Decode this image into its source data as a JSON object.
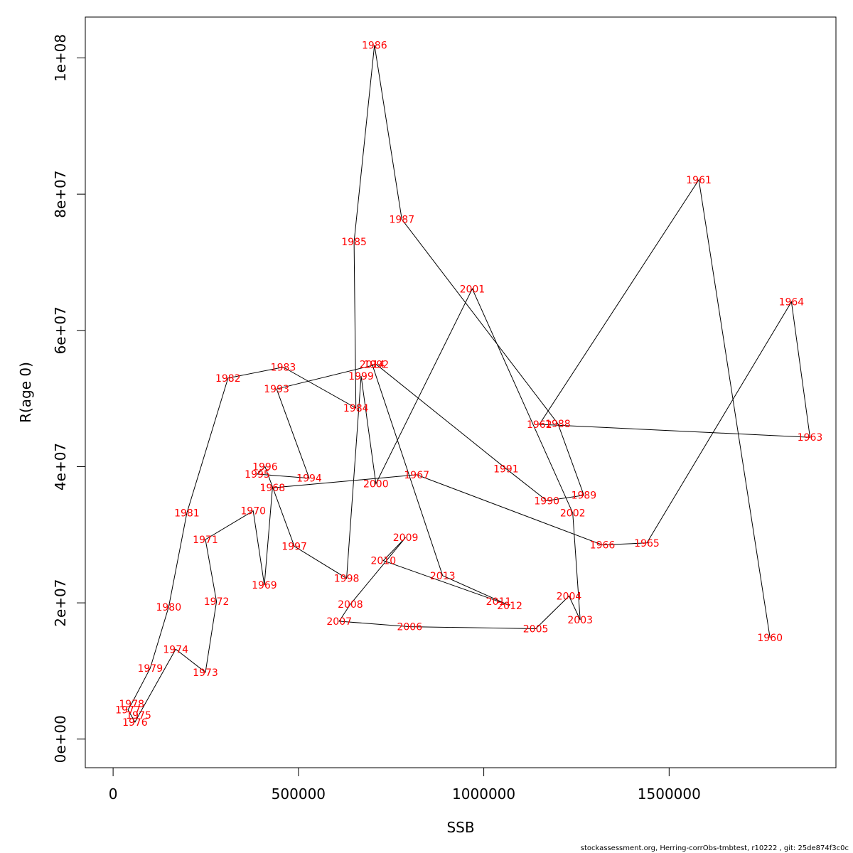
{
  "chart_data": {
    "type": "line",
    "title": "",
    "xlabel": "SSB",
    "ylabel": "R(age 0)",
    "xlim": [
      -75000,
      1950000
    ],
    "ylim": [
      -4200000,
      106000000
    ],
    "x_ticks": [
      0,
      500000,
      1000000,
      1500000
    ],
    "x_tick_labels": [
      "0",
      "500000",
      "1000000",
      "1500000"
    ],
    "y_ticks": [
      0,
      20000000,
      40000000,
      60000000,
      80000000,
      100000000
    ],
    "y_tick_labels": [
      "0e+00",
      "2e+07",
      "4e+07",
      "6e+07",
      "8e+07",
      "1e+08"
    ],
    "grid": false,
    "legend": "none",
    "line_color": "#000000",
    "label_color": "#ff0000",
    "series": [
      {
        "points": [
          {
            "year": "1960",
            "x": 1772000,
            "y": 14900000
          },
          {
            "year": "1961",
            "x": 1580000,
            "y": 82100000
          },
          {
            "year": "1962",
            "x": 1150000,
            "y": 46200000
          },
          {
            "year": "1963",
            "x": 1880000,
            "y": 44300000
          },
          {
            "year": "1964",
            "x": 1830000,
            "y": 64200000
          },
          {
            "year": "1965",
            "x": 1440000,
            "y": 28800000
          },
          {
            "year": "1966",
            "x": 1320000,
            "y": 28500000
          },
          {
            "year": "1967",
            "x": 819000,
            "y": 38800000
          },
          {
            "year": "1968",
            "x": 430000,
            "y": 36900000
          },
          {
            "year": "1969",
            "x": 408000,
            "y": 22600000
          },
          {
            "year": "1970",
            "x": 378000,
            "y": 33500000
          },
          {
            "year": "1971",
            "x": 249000,
            "y": 29300000
          },
          {
            "year": "1972",
            "x": 279000,
            "y": 20200000
          },
          {
            "year": "1973",
            "x": 249000,
            "y": 9800000
          },
          {
            "year": "1974",
            "x": 169000,
            "y": 13200000
          },
          {
            "year": "1975",
            "x": 69000,
            "y": 3500000
          },
          {
            "year": "1976",
            "x": 59000,
            "y": 2500000
          },
          {
            "year": "1977",
            "x": 40000,
            "y": 4300000
          },
          {
            "year": "1978",
            "x": 50000,
            "y": 5200000
          },
          {
            "year": "1979",
            "x": 100000,
            "y": 10400000
          },
          {
            "year": "1980",
            "x": 150000,
            "y": 19400000
          },
          {
            "year": "1981",
            "x": 199000,
            "y": 33200000
          },
          {
            "year": "1982",
            "x": 310000,
            "y": 53000000
          },
          {
            "year": "1983",
            "x": 459000,
            "y": 54600000
          },
          {
            "year": "1984",
            "x": 655000,
            "y": 48600000
          },
          {
            "year": "1985",
            "x": 650000,
            "y": 73000000
          },
          {
            "year": "1986",
            "x": 705000,
            "y": 101900000
          },
          {
            "year": "1987",
            "x": 779000,
            "y": 76300000
          },
          {
            "year": "1988",
            "x": 1200000,
            "y": 46300000
          },
          {
            "year": "1989",
            "x": 1270000,
            "y": 35800000
          },
          {
            "year": "1990",
            "x": 1170000,
            "y": 35000000
          },
          {
            "year": "1991",
            "x": 1060000,
            "y": 39700000
          },
          {
            "year": "1992",
            "x": 710000,
            "y": 55000000
          },
          {
            "year": "1993",
            "x": 441000,
            "y": 51400000
          },
          {
            "year": "1994",
            "x": 529000,
            "y": 38300000
          },
          {
            "year": "1995",
            "x": 389000,
            "y": 38900000
          },
          {
            "year": "1996",
            "x": 410000,
            "y": 40000000
          },
          {
            "year": "1997",
            "x": 489000,
            "y": 28300000
          },
          {
            "year": "1998",
            "x": 630000,
            "y": 23600000
          },
          {
            "year": "1999",
            "x": 669000,
            "y": 53300000
          },
          {
            "year": "2000",
            "x": 709000,
            "y": 37500000
          },
          {
            "year": "2001",
            "x": 969000,
            "y": 66100000
          },
          {
            "year": "2002",
            "x": 1240000,
            "y": 33200000
          },
          {
            "year": "2003",
            "x": 1260000,
            "y": 17500000
          },
          {
            "year": "2004",
            "x": 1230000,
            "y": 21000000
          },
          {
            "year": "2005",
            "x": 1140000,
            "y": 16200000
          },
          {
            "year": "2006",
            "x": 800000,
            "y": 16500000
          },
          {
            "year": "2007",
            "x": 610000,
            "y": 17300000
          },
          {
            "year": "2008",
            "x": 640000,
            "y": 19800000
          },
          {
            "year": "2009",
            "x": 789000,
            "y": 29600000
          },
          {
            "year": "2010",
            "x": 729000,
            "y": 26200000
          },
          {
            "year": "2011",
            "x": 1040000,
            "y": 20200000
          },
          {
            "year": "2012",
            "x": 1070000,
            "y": 19600000
          },
          {
            "year": "2013",
            "x": 889000,
            "y": 24000000
          },
          {
            "year": "2014",
            "x": 699000,
            "y": 55000000
          }
        ]
      }
    ]
  },
  "footer": "stockassessment.org, Herring-corrObs-tmbtest, r10222 , git: 25de874f3c0c"
}
